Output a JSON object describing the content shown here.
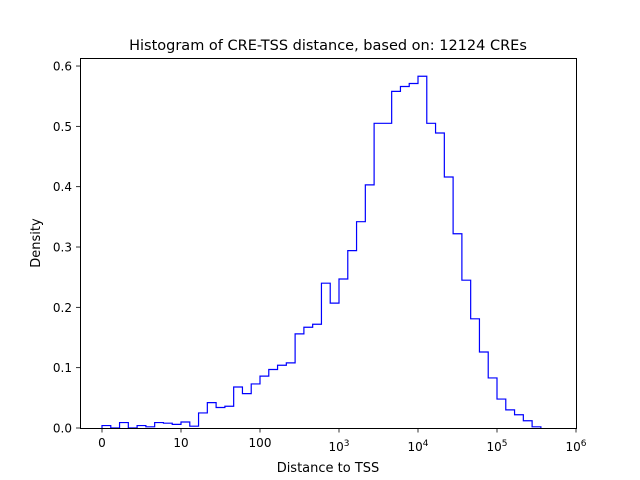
{
  "chart_data": {
    "type": "histogram-step",
    "title": "Histogram of CRE-TSS distance, based on: 12124 CREs",
    "xlabel": "Distance to TSS",
    "ylabel": "Density",
    "x_scale": "symlog",
    "x_linthresh": 10,
    "xlim": [
      -3,
      1000000
    ],
    "ylim": [
      0,
      0.61
    ],
    "bins_per_decade": 9,
    "first_bin_start": 0,
    "x_ticks": [
      {
        "value": 0,
        "label": "0",
        "exp": ""
      },
      {
        "value": 10,
        "label": "10",
        "exp": ""
      },
      {
        "value": 100,
        "label": "100",
        "exp": ""
      },
      {
        "value": 1000,
        "label": "10",
        "exp": "3"
      },
      {
        "value": 10000,
        "label": "10",
        "exp": "4"
      },
      {
        "value": 100000,
        "label": "10",
        "exp": "5"
      },
      {
        "value": 1000000,
        "label": "10",
        "exp": "6"
      }
    ],
    "y_ticks": [
      {
        "value": 0,
        "label": "0.0"
      },
      {
        "value": 0.1,
        "label": "0.1"
      },
      {
        "value": 0.2,
        "label": "0.2"
      },
      {
        "value": 0.3,
        "label": "0.3"
      },
      {
        "value": 0.4,
        "label": "0.4"
      },
      {
        "value": 0.5,
        "label": "0.5"
      },
      {
        "value": 0.6,
        "label": "0.6"
      }
    ],
    "density": [
      0.004,
      0.0,
      0.009,
      0.0,
      0.004,
      0.002,
      0.009,
      0.008,
      0.006,
      0.01,
      0.003,
      0.025,
      0.042,
      0.034,
      0.036,
      0.068,
      0.057,
      0.073,
      0.086,
      0.097,
      0.104,
      0.108,
      0.156,
      0.167,
      0.172,
      0.24,
      0.207,
      0.247,
      0.294,
      0.342,
      0.403,
      0.505,
      0.505,
      0.558,
      0.566,
      0.571,
      0.583,
      0.505,
      0.489,
      0.416,
      0.322,
      0.245,
      0.181,
      0.126,
      0.083,
      0.048,
      0.03,
      0.022,
      0.012,
      0.002
    ],
    "color": "#0000ff",
    "grid": false
  }
}
